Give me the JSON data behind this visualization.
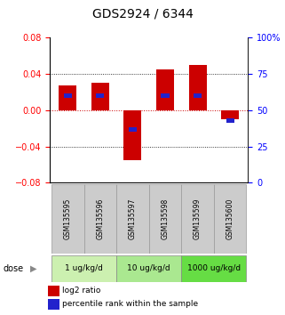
{
  "title": "GDS2924 / 6344",
  "samples": [
    "GSM135595",
    "GSM135596",
    "GSM135597",
    "GSM135598",
    "GSM135599",
    "GSM135600"
  ],
  "log2_ratios": [
    0.027,
    0.03,
    -0.055,
    0.045,
    0.05,
    -0.01
  ],
  "percentile_ranks": [
    60,
    60,
    37,
    60,
    60,
    43
  ],
  "ylim_left": [
    -0.08,
    0.08
  ],
  "ylim_right": [
    0,
    100
  ],
  "yticks_left": [
    -0.08,
    -0.04,
    0,
    0.04,
    0.08
  ],
  "yticks_right": [
    0,
    25,
    50,
    75,
    100
  ],
  "ytick_labels_right": [
    "0",
    "25",
    "50",
    "75",
    "100%"
  ],
  "bar_color": "#cc0000",
  "marker_color": "#2222cc",
  "bar_width": 0.55,
  "dose_groups": [
    {
      "label": "1 ug/kg/d",
      "samples": [
        0,
        1
      ],
      "color": "#ccf0b0"
    },
    {
      "label": "10 ug/kg/d",
      "samples": [
        2,
        3
      ],
      "color": "#aae890"
    },
    {
      "label": "1000 ug/kg/d",
      "samples": [
        4,
        5
      ],
      "color": "#66dd44"
    }
  ],
  "dose_label": "dose",
  "legend_red": "log2 ratio",
  "legend_blue": "percentile rank within the sample",
  "zero_line_color": "#cc0000",
  "background_labels": "#cccccc",
  "title_fontsize": 10,
  "axis_fontsize": 7,
  "legend_fontsize": 6.5
}
